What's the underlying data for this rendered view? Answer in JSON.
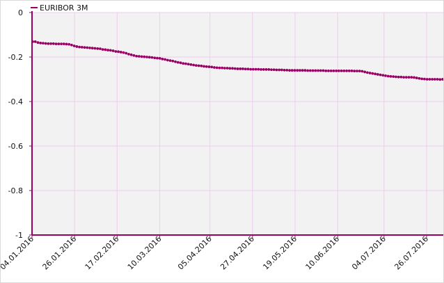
{
  "chart_data": {
    "type": "scatter",
    "title": "",
    "xlabel": "",
    "ylabel": "",
    "legend": {
      "position": "top-left"
    },
    "grid": true,
    "ylim": [
      -1,
      0
    ],
    "yticks": [
      0,
      -0.2,
      -0.4,
      -0.6,
      -0.8,
      -1
    ],
    "xlim": [
      "04.01.2016",
      "04.08.2016"
    ],
    "xticks": [
      "04.01.2016",
      "26.01.2016",
      "17.02.2016",
      "10.03.2016",
      "05.04.2016",
      "27.04.2016",
      "19.05.2016",
      "10.06.2016",
      "04.07.2016",
      "26.07.2016"
    ],
    "colors": {
      "series": "#990066",
      "plot_bg": "#f2f2f2",
      "grid": "#f0ccf0",
      "axis": "#990066"
    },
    "series": [
      {
        "name": "EURIBOR 3M",
        "values": [
          -0.131,
          -0.131,
          -0.135,
          -0.137,
          -0.138,
          -0.139,
          -0.14,
          -0.14,
          -0.14,
          -0.141,
          -0.141,
          -0.141,
          -0.141,
          -0.142,
          -0.143,
          -0.146,
          -0.15,
          -0.153,
          -0.155,
          -0.156,
          -0.157,
          -0.158,
          -0.159,
          -0.16,
          -0.161,
          -0.162,
          -0.163,
          -0.166,
          -0.167,
          -0.169,
          -0.17,
          -0.172,
          -0.175,
          -0.176,
          -0.178,
          -0.18,
          -0.183,
          -0.187,
          -0.19,
          -0.193,
          -0.196,
          -0.197,
          -0.198,
          -0.199,
          -0.2,
          -0.201,
          -0.202,
          -0.204,
          -0.205,
          -0.206,
          -0.209,
          -0.211,
          -0.214,
          -0.216,
          -0.218,
          -0.221,
          -0.224,
          -0.226,
          -0.229,
          -0.23,
          -0.232,
          -0.234,
          -0.236,
          -0.238,
          -0.239,
          -0.24,
          -0.242,
          -0.243,
          -0.244,
          -0.245,
          -0.247,
          -0.248,
          -0.249,
          -0.249,
          -0.25,
          -0.25,
          -0.251,
          -0.251,
          -0.252,
          -0.253,
          -0.253,
          -0.253,
          -0.254,
          -0.254,
          -0.255,
          -0.255,
          -0.255,
          -0.255,
          -0.256,
          -0.256,
          -0.256,
          -0.256,
          -0.257,
          -0.257,
          -0.258,
          -0.258,
          -0.258,
          -0.259,
          -0.259,
          -0.26,
          -0.26,
          -0.26,
          -0.26,
          -0.26,
          -0.26,
          -0.26,
          -0.261,
          -0.261,
          -0.261,
          -0.261,
          -0.261,
          -0.261,
          -0.261,
          -0.262,
          -0.262,
          -0.262,
          -0.262,
          -0.262,
          -0.262,
          -0.262,
          -0.262,
          -0.262,
          -0.262,
          -0.262,
          -0.263,
          -0.263,
          -0.263,
          -0.264,
          -0.267,
          -0.27,
          -0.272,
          -0.274,
          -0.276,
          -0.278,
          -0.28,
          -0.282,
          -0.284,
          -0.286,
          -0.287,
          -0.288,
          -0.289,
          -0.29,
          -0.29,
          -0.291,
          -0.291,
          -0.291,
          -0.291,
          -0.292,
          -0.294,
          -0.296,
          -0.298,
          -0.299,
          -0.3,
          -0.3,
          -0.3,
          -0.3,
          -0.3,
          -0.301,
          -0.3
        ]
      }
    ]
  }
}
